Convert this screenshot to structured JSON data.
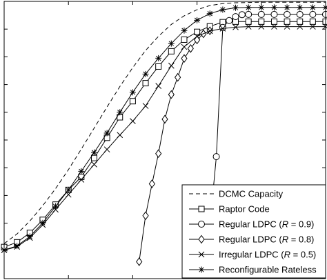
{
  "chart_data": {
    "type": "line",
    "title": "",
    "xlabel": "",
    "ylabel": "",
    "xlim": [
      -10,
      40
    ],
    "ylim": [
      0,
      1
    ],
    "grid": false,
    "legend_position": "bottom-right",
    "series": [
      {
        "name": "DCMC Capacity",
        "style": "dashed",
        "marker": "none",
        "color": "#000000",
        "x": [
          -10,
          -8,
          -6,
          -4,
          -2,
          0,
          2,
          4,
          6,
          8,
          10,
          12,
          14,
          16,
          18,
          20,
          22,
          24,
          26,
          28,
          30,
          32,
          34,
          36,
          38,
          40
        ],
        "y": [
          0.126,
          0.161,
          0.208,
          0.263,
          0.325,
          0.393,
          0.467,
          0.543,
          0.619,
          0.693,
          0.761,
          0.823,
          0.874,
          0.917,
          0.948,
          0.97,
          0.985,
          0.992,
          0.995,
          0.996,
          0.997,
          0.997,
          0.997,
          0.997,
          0.997,
          0.997
        ]
      },
      {
        "name": "Raptor Code",
        "style": "solid",
        "marker": "square",
        "color": "#000000",
        "x": [
          -10,
          -8,
          -6,
          -4,
          -2,
          0,
          2,
          4,
          6,
          8,
          10,
          12,
          14,
          16,
          18,
          20,
          22,
          24,
          26,
          28,
          30,
          32,
          34,
          36,
          38,
          40
        ],
        "y": [
          0.114,
          0.131,
          0.165,
          0.212,
          0.267,
          0.32,
          0.367,
          0.435,
          0.508,
          0.582,
          0.64,
          0.705,
          0.765,
          0.82,
          0.862,
          0.89,
          0.91,
          0.925,
          0.927,
          0.927,
          0.927,
          0.927,
          0.927,
          0.927,
          0.927,
          0.927
        ]
      },
      {
        "name": "Regular LDPC (R = 0.9)",
        "style": "solid",
        "marker": "circle",
        "color": "#000000",
        "x": [
          22,
          23,
          24,
          25,
          26,
          27,
          28,
          30,
          32,
          34,
          36,
          38,
          40
        ],
        "y": [
          0.192,
          0.44,
          0.906,
          0.931,
          0.945,
          0.952,
          0.953,
          0.953,
          0.953,
          0.953,
          0.953,
          0.953,
          0.953
        ]
      },
      {
        "name": "Regular LDPC (R = 0.8)",
        "style": "solid",
        "marker": "diamond",
        "color": "#000000",
        "x": [
          11,
          12,
          13,
          14,
          15,
          16,
          17,
          18,
          19,
          20,
          21,
          22
        ],
        "y": [
          0.061,
          0.227,
          0.342,
          0.451,
          0.575,
          0.664,
          0.726,
          0.794,
          0.83,
          0.861,
          0.883,
          0.894
        ]
      },
      {
        "name": "Irregular LDPC (R = 0.5)",
        "style": "solid",
        "marker": "x",
        "color": "#000000",
        "x": [
          -10,
          -8,
          -6,
          -4,
          -2,
          0,
          2,
          4,
          6,
          8,
          10,
          12,
          14,
          16,
          18,
          20,
          22,
          24,
          26,
          28,
          30,
          32,
          34,
          36,
          38,
          40
        ],
        "y": [
          0.103,
          0.115,
          0.147,
          0.194,
          0.249,
          0.303,
          0.357,
          0.412,
          0.466,
          0.518,
          0.568,
          0.623,
          0.695,
          0.768,
          0.836,
          0.874,
          0.893,
          0.902,
          0.907,
          0.909,
          0.909,
          0.909,
          0.909,
          0.909,
          0.909,
          0.909
        ]
      },
      {
        "name": "Reconfigurable Rateless",
        "style": "solid",
        "marker": "asterisk",
        "color": "#000000",
        "x": [
          -10,
          -8,
          -6,
          -4,
          -2,
          0,
          2,
          4,
          6,
          8,
          10,
          12,
          14,
          16,
          18,
          20,
          22,
          24,
          26,
          28,
          30,
          32,
          34,
          36,
          38,
          40
        ],
        "y": [
          0.103,
          0.118,
          0.152,
          0.201,
          0.261,
          0.32,
          0.387,
          0.455,
          0.525,
          0.6,
          0.672,
          0.738,
          0.795,
          0.848,
          0.895,
          0.932,
          0.956,
          0.97,
          0.977,
          0.978,
          0.978,
          0.978,
          0.978,
          0.978,
          0.978,
          0.978
        ]
      }
    ]
  },
  "legend": {
    "entries": [
      {
        "label": "DCMC Capacity",
        "italic_part": "",
        "suffix": ""
      },
      {
        "label": "Raptor Code",
        "italic_part": "",
        "suffix": ""
      },
      {
        "label": "Regular LDPC (",
        "italic_part": "R",
        "suffix": " = 0.9)"
      },
      {
        "label": "Regular LDPC (",
        "italic_part": "R",
        "suffix": " = 0.8)"
      },
      {
        "label": "Irregular LDPC (",
        "italic_part": "R",
        "suffix": " = 0.5)"
      },
      {
        "label": "Reconfigurable Rateless",
        "italic_part": "",
        "suffix": ""
      }
    ]
  }
}
